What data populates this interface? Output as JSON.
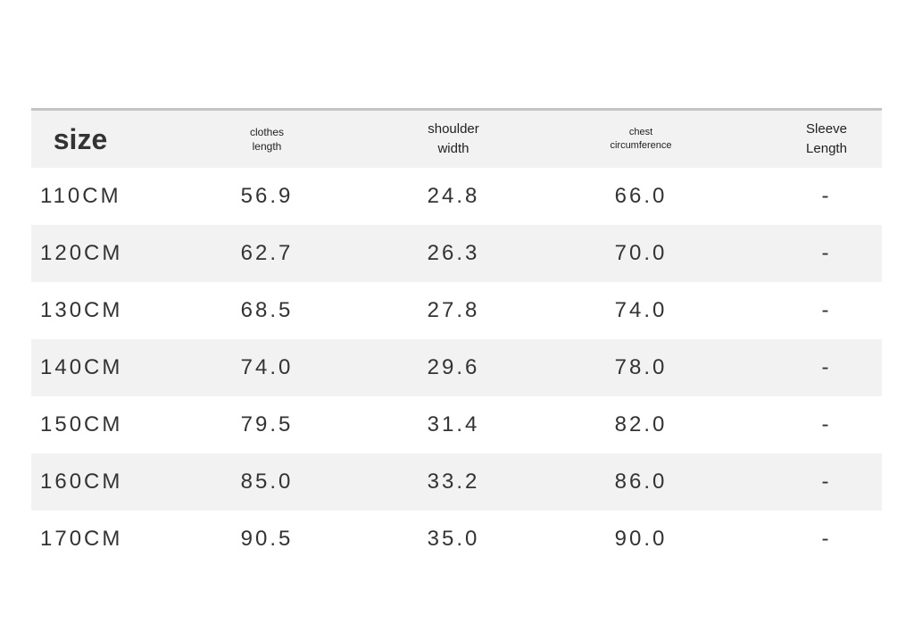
{
  "table": {
    "header": [
      [
        "size"
      ],
      [
        "clothes",
        "length"
      ],
      [
        "shoulder",
        "width"
      ],
      [
        "chest",
        "circumference"
      ],
      [
        "Sleeve",
        "Length"
      ]
    ],
    "rows": [
      [
        "110CM",
        "56.9",
        "24.8",
        "66.0",
        "-"
      ],
      [
        "120CM",
        "62.7",
        "26.3",
        "70.0",
        "-"
      ],
      [
        "130CM",
        "68.5",
        "27.8",
        "74.0",
        "-"
      ],
      [
        "140CM",
        "74.0",
        "29.6",
        "78.0",
        "-"
      ],
      [
        "150CM",
        "79.5",
        "31.4",
        "82.0",
        "-"
      ],
      [
        "160CM",
        "85.0",
        "33.2",
        "86.0",
        "-"
      ],
      [
        "170CM",
        "90.5",
        "35.0",
        "90.0",
        "-"
      ]
    ]
  }
}
